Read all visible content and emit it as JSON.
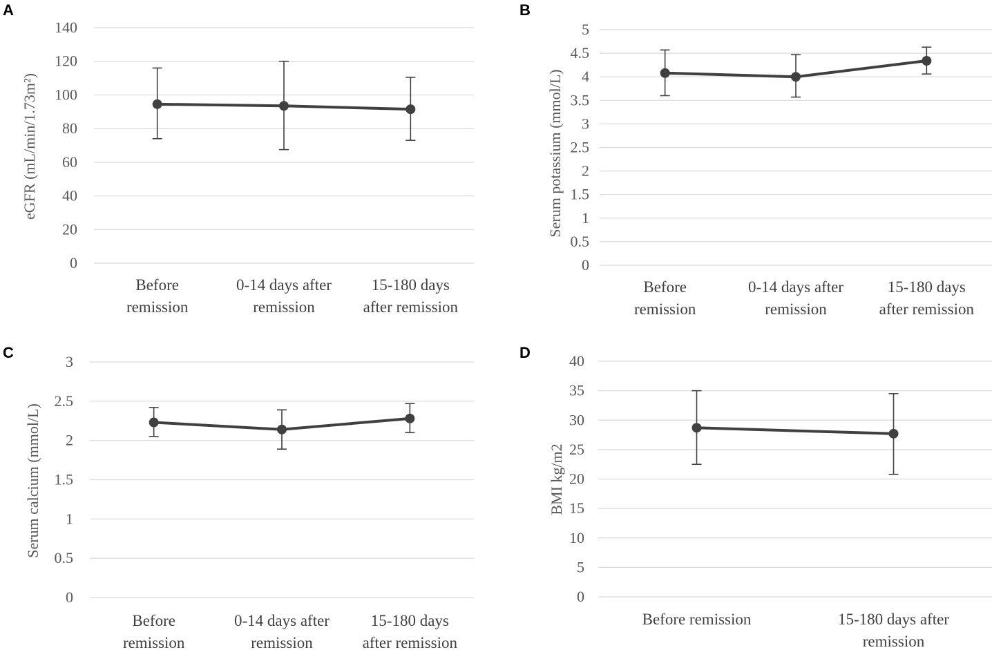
{
  "chart_data": [
    {
      "panel": "A",
      "type": "line",
      "ylabel": "eGFR (mL/min/1.73m²)",
      "ylim": [
        0,
        140
      ],
      "yticks": [
        0,
        20,
        40,
        60,
        80,
        100,
        120,
        140
      ],
      "categories": [
        [
          "Before",
          "remission"
        ],
        [
          "0-14 days after",
          "remission"
        ],
        [
          "15-180 days",
          "after remission"
        ]
      ],
      "values": [
        94.5,
        93.5,
        91.5
      ],
      "error_low": [
        74,
        67.5,
        73
      ],
      "error_high": [
        116,
        120,
        110.5
      ],
      "grid": true
    },
    {
      "panel": "B",
      "type": "line",
      "ylabel": "Serum potassium (mmol/L)",
      "ylim": [
        0,
        5
      ],
      "yticks": [
        0,
        0.5,
        1,
        1.5,
        2,
        2.5,
        3,
        3.5,
        4,
        4.5,
        5
      ],
      "categories": [
        [
          "Before",
          "remission"
        ],
        [
          "0-14 days after",
          "remission"
        ],
        [
          "15-180 days",
          "after remission"
        ]
      ],
      "values": [
        4.08,
        4.0,
        4.34
      ],
      "error_low": [
        3.6,
        3.57,
        4.06
      ],
      "error_high": [
        4.57,
        4.47,
        4.63
      ],
      "grid": true
    },
    {
      "panel": "C",
      "type": "line",
      "ylabel": "Serum calcium (mmol/L)",
      "ylim": [
        0,
        3
      ],
      "yticks": [
        0,
        0.5,
        1,
        1.5,
        2,
        2.5,
        3
      ],
      "categories": [
        [
          "Before",
          "remission"
        ],
        [
          "0-14 days after",
          "remission"
        ],
        [
          "15-180 days",
          "after remission"
        ]
      ],
      "values": [
        2.23,
        2.14,
        2.28
      ],
      "error_low": [
        2.05,
        1.89,
        2.1
      ],
      "error_high": [
        2.42,
        2.39,
        2.47
      ],
      "grid": true
    },
    {
      "panel": "D",
      "type": "line",
      "ylabel": "BMI kg/m2",
      "ylim": [
        0,
        40
      ],
      "yticks": [
        0,
        5,
        10,
        15,
        20,
        25,
        30,
        35,
        40
      ],
      "categories": [
        [
          "Before remission"
        ],
        [
          "15-180 days after",
          "remission"
        ]
      ],
      "values": [
        28.7,
        27.7
      ],
      "error_low": [
        22.5,
        20.8
      ],
      "error_high": [
        35,
        34.5
      ],
      "grid": true
    }
  ]
}
